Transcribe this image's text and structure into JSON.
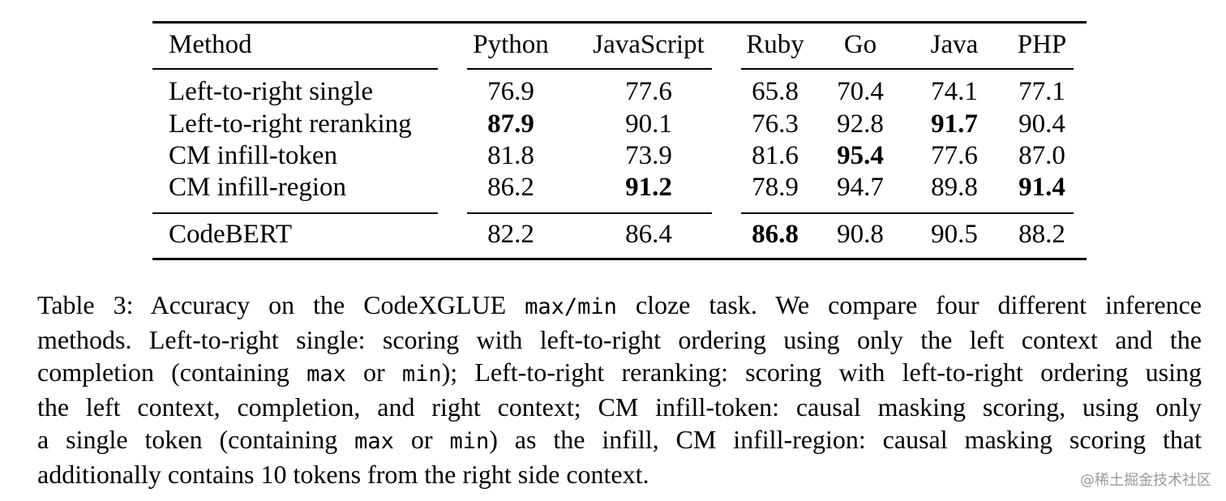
{
  "table": {
    "header": [
      "Method",
      "Python",
      "JavaScript",
      "Ruby",
      "Go",
      "Java",
      "PHP"
    ],
    "rows": [
      {
        "method": "Left-to-right single",
        "values": [
          "76.9",
          "77.6",
          "65.8",
          "70.4",
          "74.1",
          "77.1"
        ],
        "bold": [
          false,
          false,
          false,
          false,
          false,
          false
        ]
      },
      {
        "method": "Left-to-right reranking",
        "values": [
          "87.9",
          "90.1",
          "76.3",
          "92.8",
          "91.7",
          "90.4"
        ],
        "bold": [
          true,
          false,
          false,
          false,
          true,
          false
        ]
      },
      {
        "method": "CM infill-token",
        "values": [
          "81.8",
          "73.9",
          "81.6",
          "95.4",
          "77.6",
          "87.0"
        ],
        "bold": [
          false,
          false,
          false,
          true,
          false,
          false
        ]
      },
      {
        "method": "CM infill-region",
        "values": [
          "86.2",
          "91.2",
          "78.9",
          "94.7",
          "89.8",
          "91.4"
        ],
        "bold": [
          false,
          true,
          false,
          false,
          false,
          true
        ]
      },
      {
        "method": "CodeBERT",
        "values": [
          "82.2",
          "86.4",
          "86.8",
          "90.8",
          "90.5",
          "88.2"
        ],
        "bold": [
          false,
          false,
          true,
          false,
          false,
          false
        ]
      }
    ]
  },
  "caption": {
    "l1a": "Table 3: Accuracy on the CodeXGLUE ",
    "l1code": "max/min",
    "l1b": " cloze task. We compare four different inference",
    "l2": "methods. Left-to-right single: scoring with left-to-right ordering using only the left context and the",
    "l3a": "completion (containing ",
    "l3code1": "max",
    "l3b": " or ",
    "l3code2": "min",
    "l3c": "); Left-to-right reranking: scoring with left-to-right ordering using",
    "l4": "the left context, completion, and right context; CM infill-token: causal masking scoring, using only",
    "l5a": "a single token (containing ",
    "l5code1": "max",
    "l5b": " or ",
    "l5code2": "min",
    "l5c": ") as the infill, CM infill-region: causal masking scoring that",
    "l6": "additionally contains 10 tokens from the right side context."
  },
  "watermark": "@稀土掘金技术社区"
}
